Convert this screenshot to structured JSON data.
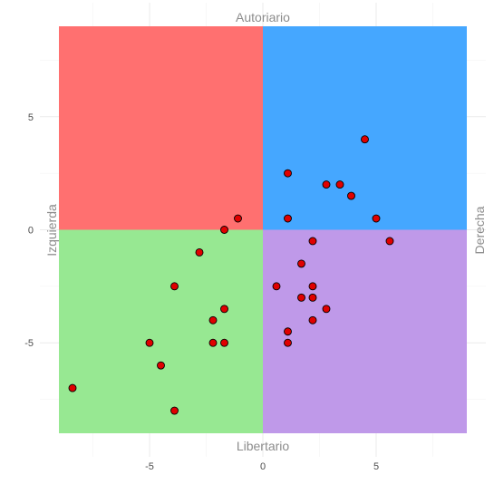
{
  "chart_data": {
    "type": "scatter",
    "title": "",
    "xlabel": "",
    "ylabel": "",
    "xlim": [
      -9,
      9
    ],
    "ylim": [
      -9,
      9
    ],
    "xticks": [
      -5,
      0,
      5
    ],
    "yticks": [
      -5,
      0,
      5
    ],
    "grid": true,
    "quadrant_labels": {
      "top": "Autoriario",
      "bottom": "Libertario",
      "left": "Izquierda",
      "right": "Derecha"
    },
    "quadrants": [
      {
        "position": "top-left",
        "color": "#ff7070"
      },
      {
        "position": "top-right",
        "color": "#45a7ff"
      },
      {
        "position": "bottom-left",
        "color": "#97e892"
      },
      {
        "position": "bottom-right",
        "color": "#bf99e9"
      }
    ],
    "point_color": "#e00000",
    "point_edge_color": "#000000",
    "points": [
      {
        "x": 4.5,
        "y": 4
      },
      {
        "x": 1.1,
        "y": 2.5
      },
      {
        "x": 2.8,
        "y": 2
      },
      {
        "x": 3.4,
        "y": 2
      },
      {
        "x": 3.9,
        "y": 1.5
      },
      {
        "x": 1.1,
        "y": 0.5
      },
      {
        "x": 5.0,
        "y": 0.5
      },
      {
        "x": -1.1,
        "y": 0.5
      },
      {
        "x": -1.7,
        "y": 0
      },
      {
        "x": 2.2,
        "y": -0.5
      },
      {
        "x": 5.6,
        "y": -0.5
      },
      {
        "x": -2.8,
        "y": -1
      },
      {
        "x": 1.7,
        "y": -1.5
      },
      {
        "x": 0.6,
        "y": -2.5
      },
      {
        "x": 2.2,
        "y": -2.5
      },
      {
        "x": 1.7,
        "y": -3
      },
      {
        "x": 2.2,
        "y": -3
      },
      {
        "x": -3.9,
        "y": -2.5
      },
      {
        "x": -1.7,
        "y": -3.5
      },
      {
        "x": 2.8,
        "y": -3.5
      },
      {
        "x": -2.2,
        "y": -4
      },
      {
        "x": 2.2,
        "y": -4
      },
      {
        "x": 1.1,
        "y": -4.5
      },
      {
        "x": -5.0,
        "y": -5
      },
      {
        "x": -2.2,
        "y": -5
      },
      {
        "x": -1.7,
        "y": -5
      },
      {
        "x": 1.1,
        "y": -5
      },
      {
        "x": -4.5,
        "y": -6
      },
      {
        "x": -8.4,
        "y": -7
      },
      {
        "x": -3.9,
        "y": -8
      }
    ]
  }
}
